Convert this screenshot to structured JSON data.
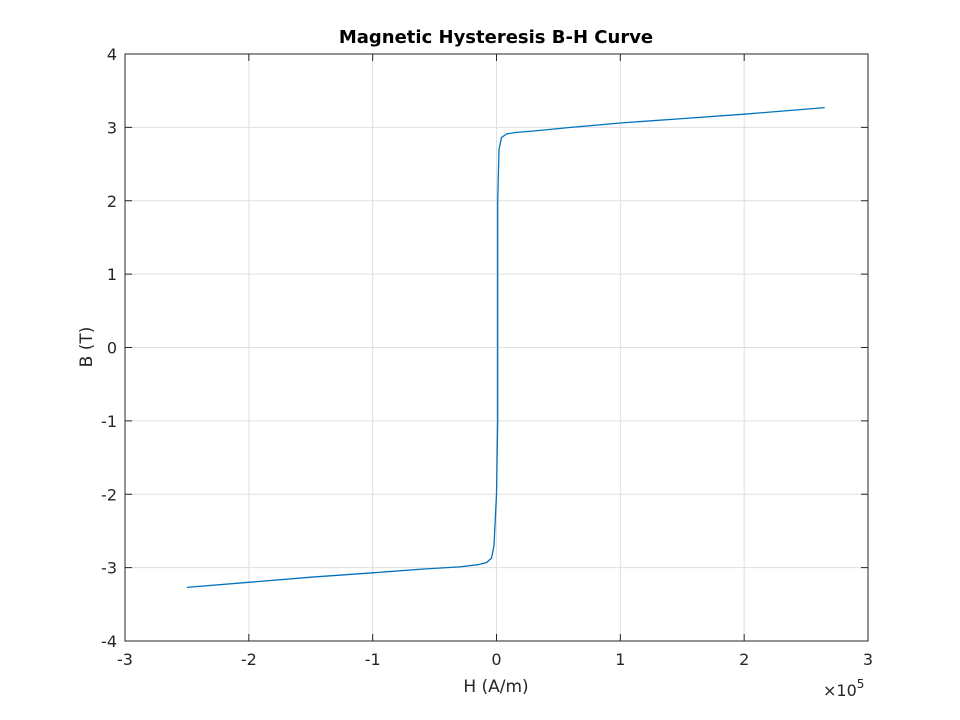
{
  "chart_data": {
    "type": "line",
    "title": "Magnetic Hysteresis B-H Curve",
    "xlabel": "H (A/m)",
    "ylabel": "B (T)",
    "x_exponent_label": "×10",
    "x_exponent_power": "5",
    "x_multiplier": 100000,
    "xlim": [
      -3,
      3
    ],
    "ylim": [
      -4,
      4
    ],
    "xticks": [
      -3,
      -2,
      -1,
      0,
      1,
      2,
      3
    ],
    "yticks": [
      -4,
      -3,
      -2,
      -1,
      0,
      1,
      2,
      3,
      4
    ],
    "xtick_labels": [
      "-3",
      "-2",
      "-1",
      "0",
      "1",
      "2",
      "3"
    ],
    "ytick_labels": [
      "-4",
      "-3",
      "-2",
      "-1",
      "0",
      "1",
      "2",
      "3",
      "4"
    ],
    "grid": true,
    "series_color": "#0072bd",
    "series": [
      {
        "x": [
          -2.5,
          -2.0,
          -1.5,
          -1.0,
          -0.6,
          -0.3,
          -0.15,
          -0.08,
          -0.04,
          -0.02,
          0.0,
          0.01,
          0.01,
          0.01,
          0.01,
          0.02,
          0.04,
          0.08,
          0.15,
          0.3,
          0.6,
          1.0,
          1.5,
          2.0,
          2.65
        ],
        "y": [
          -3.27,
          -3.2,
          -3.13,
          -3.07,
          -3.02,
          -2.99,
          -2.96,
          -2.93,
          -2.87,
          -2.7,
          -2.0,
          -1.0,
          0.0,
          1.0,
          2.0,
          2.7,
          2.86,
          2.91,
          2.93,
          2.95,
          3.0,
          3.06,
          3.12,
          3.18,
          3.27
        ]
      }
    ]
  }
}
